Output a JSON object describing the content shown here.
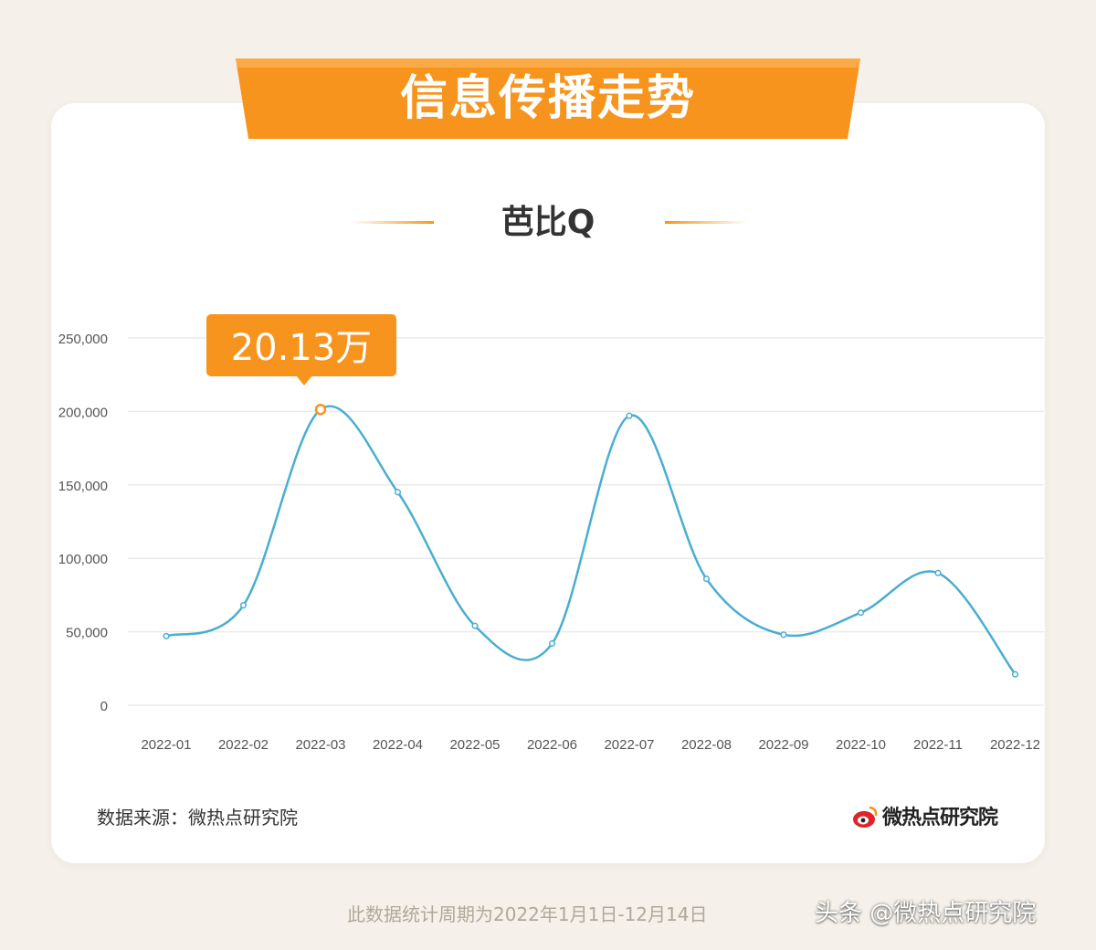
{
  "banner": {
    "title": "信息传播走势"
  },
  "colors": {
    "accent": "#f7941d",
    "line": "#4aaed0",
    "grid": "#ebebeb"
  },
  "chart_data": {
    "type": "line",
    "title": "芭比Q",
    "x": [
      "2022-01",
      "2022-02",
      "2022-03",
      "2022-04",
      "2022-05",
      "2022-06",
      "2022-07",
      "2022-08",
      "2022-09",
      "2022-10",
      "2022-11",
      "2022-12"
    ],
    "series": [
      {
        "values": [
          47000,
          68000,
          201300,
          145000,
          54000,
          42000,
          197000,
          86000,
          48000,
          63000,
          90000,
          21000
        ]
      }
    ],
    "yticks": [
      0,
      50000,
      100000,
      150000,
      200000,
      250000
    ],
    "ylim": [
      0,
      250000
    ],
    "highlight": {
      "index": 2,
      "label": "20.13万"
    },
    "grid": true,
    "smooth": true
  },
  "source_label": "数据来源：微热点研究院",
  "logo_text": "微热点研究院",
  "footnote": "此数据统计周期为2022年1月1日-12月14日",
  "watermark": "头条 @微热点研究院"
}
